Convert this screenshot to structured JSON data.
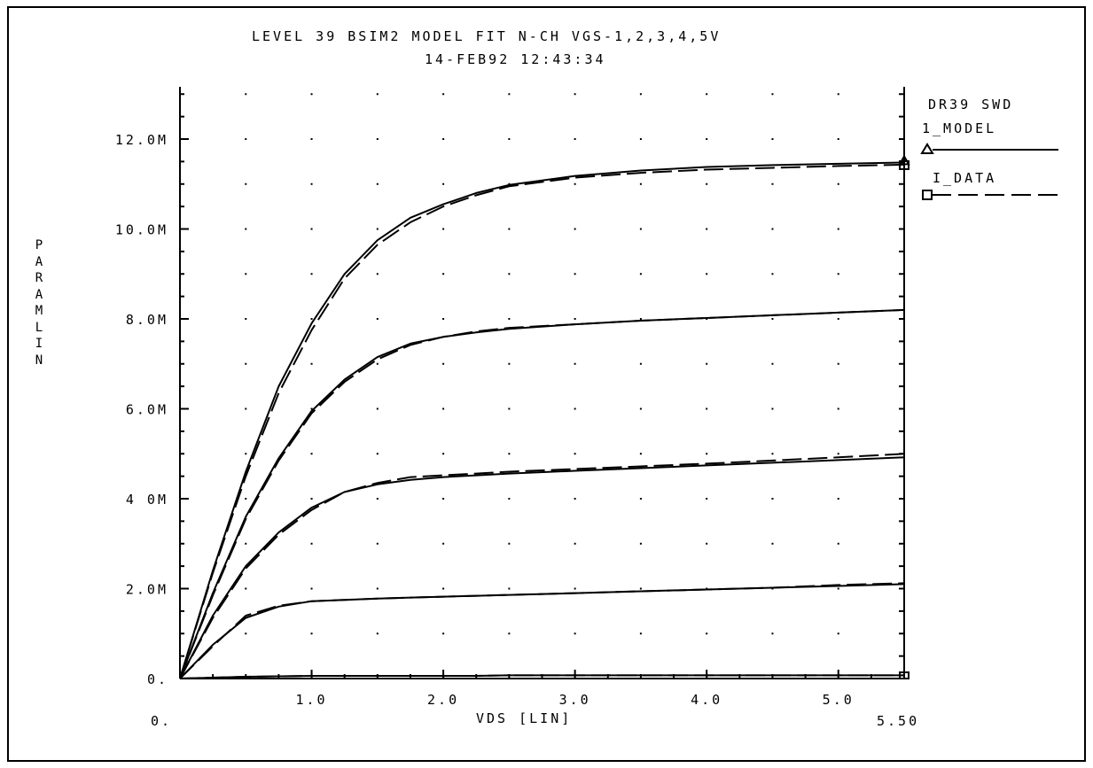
{
  "chart_data": {
    "type": "line",
    "title": "LEVEL 39 BSIM2 MODEL FIT N-CH VGS-1,2,3,4,5V",
    "subtitle": "14-FEB92 12:43:34",
    "xlabel": "VDS [LIN]",
    "ylabel": "PARAM  LIN",
    "xlim": [
      0,
      5.5
    ],
    "ylim": [
      0,
      12.0
    ],
    "y_unit": "M",
    "x_ticks": [
      1.0,
      2.0,
      3.0,
      4.0,
      5.0
    ],
    "x_tick_labels": [
      "1.0",
      "2.0",
      "3.0",
      "4.0",
      "5.0"
    ],
    "x_start_label": "0.",
    "x_end_label": "5.50",
    "y_ticks": [
      0,
      2,
      4,
      6,
      8,
      10,
      12
    ],
    "y_tick_labels": [
      "0.",
      "2.0M",
      "4 0M",
      "6.0M",
      "8.0M",
      "10.0M",
      "12.0M"
    ],
    "grid": "dotted",
    "legend_position": "right",
    "legend_title": "DR39 SWD",
    "legend": [
      {
        "label": "1_MODEL",
        "marker": "triangle",
        "line": "solid"
      },
      {
        "label": "I_DATA",
        "marker": "square",
        "line": "dashed"
      }
    ],
    "colors": {
      "ink": "#000000",
      "background": "#ffffff"
    },
    "x": [
      0,
      0.25,
      0.5,
      0.75,
      1.0,
      1.25,
      1.5,
      1.75,
      2.0,
      2.25,
      2.5,
      3.0,
      3.5,
      4.0,
      4.5,
      5.0,
      5.5
    ],
    "series": [
      {
        "curve": "VGS=1V model",
        "values": [
          0,
          0.02,
          0.04,
          0.05,
          0.06,
          0.06,
          0.06,
          0.06,
          0.06,
          0.06,
          0.07,
          0.07,
          0.07,
          0.07,
          0.07,
          0.07,
          0.07
        ]
      },
      {
        "curve": "VGS=1V data",
        "values": [
          0,
          0.02,
          0.04,
          0.05,
          0.06,
          0.06,
          0.06,
          0.06,
          0.06,
          0.06,
          0.07,
          0.07,
          0.07,
          0.07,
          0.07,
          0.07,
          0.07
        ]
      },
      {
        "curve": "VGS=2V model",
        "values": [
          0,
          0.75,
          1.35,
          1.6,
          1.72,
          1.75,
          1.78,
          1.8,
          1.82,
          1.84,
          1.86,
          1.9,
          1.94,
          1.98,
          2.02,
          2.06,
          2.1
        ]
      },
      {
        "curve": "VGS=2V data",
        "values": [
          0,
          0.72,
          1.4,
          1.62,
          1.72,
          1.75,
          1.78,
          1.8,
          1.82,
          1.84,
          1.86,
          1.9,
          1.94,
          1.98,
          2.02,
          2.08,
          2.12
        ]
      },
      {
        "curve": "VGS=3V model",
        "values": [
          0,
          1.4,
          2.5,
          3.25,
          3.8,
          4.15,
          4.32,
          4.42,
          4.48,
          4.52,
          4.56,
          4.62,
          4.68,
          4.74,
          4.8,
          4.86,
          4.92
        ]
      },
      {
        "curve": "VGS=3V data",
        "values": [
          0,
          1.35,
          2.45,
          3.2,
          3.75,
          4.15,
          4.35,
          4.48,
          4.52,
          4.56,
          4.6,
          4.66,
          4.72,
          4.78,
          4.85,
          4.92,
          5.0
        ]
      },
      {
        "curve": "VGS=4V model",
        "values": [
          0,
          1.9,
          3.6,
          4.9,
          5.95,
          6.65,
          7.15,
          7.45,
          7.6,
          7.7,
          7.78,
          7.88,
          7.96,
          8.02,
          8.08,
          8.14,
          8.2
        ]
      },
      {
        "curve": "VGS=4V data",
        "values": [
          0,
          1.85,
          3.55,
          4.85,
          5.9,
          6.6,
          7.1,
          7.42,
          7.6,
          7.72,
          7.8,
          7.88,
          7.96,
          8.02,
          8.08,
          8.14,
          8.2
        ]
      },
      {
        "curve": "VGS=5V model",
        "values": [
          0,
          2.4,
          4.6,
          6.5,
          7.9,
          9.0,
          9.75,
          10.25,
          10.55,
          10.8,
          10.98,
          11.18,
          11.3,
          11.38,
          11.42,
          11.45,
          11.48
        ]
      },
      {
        "curve": "VGS=5V data",
        "values": [
          0,
          2.35,
          4.5,
          6.35,
          7.75,
          8.9,
          9.65,
          10.15,
          10.5,
          10.75,
          10.95,
          11.14,
          11.25,
          11.32,
          11.36,
          11.4,
          11.43
        ]
      }
    ]
  }
}
